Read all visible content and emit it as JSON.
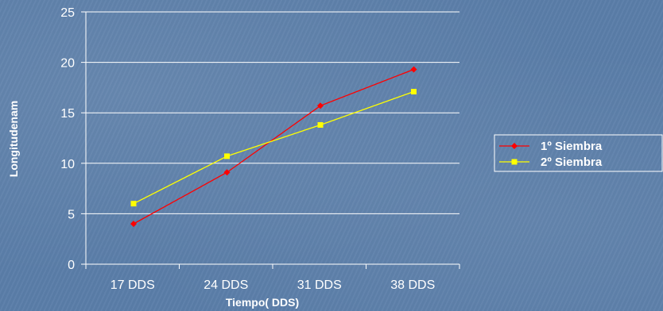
{
  "chart_data": {
    "type": "line",
    "categories": [
      "17 DDS",
      "24 DDS",
      "31 DDS",
      "38 DDS"
    ],
    "series": [
      {
        "name": "1º Siembra",
        "values": [
          4.0,
          9.1,
          15.7,
          19.3
        ],
        "color": "#ff0000",
        "marker": "diamond"
      },
      {
        "name": "2º Siembra",
        "values": [
          6.0,
          10.7,
          13.8,
          17.1
        ],
        "color": "#ffff00",
        "marker": "square"
      }
    ],
    "xlabel": "Tiempo( DDS)",
    "ylabel": "Longitudenam",
    "ylim": [
      0,
      25
    ],
    "yticks": [
      "0",
      "5",
      "10",
      "15",
      "20",
      "25"
    ],
    "grid": true,
    "legend_position": "right"
  }
}
